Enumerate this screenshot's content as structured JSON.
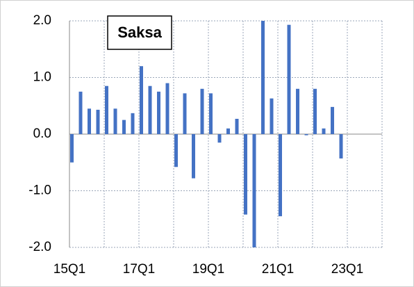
{
  "chart_data": {
    "type": "bar",
    "title": "Saksa",
    "categories": [
      "15Q1",
      null,
      null,
      null,
      null,
      null,
      null,
      null,
      "17Q1",
      null,
      null,
      null,
      null,
      null,
      null,
      null,
      "19Q1",
      null,
      null,
      null,
      null,
      null,
      null,
      null,
      "21Q1",
      null,
      null,
      null,
      null,
      null,
      null,
      null,
      "23Q1",
      null,
      null,
      null
    ],
    "values": [
      -0.5,
      0.75,
      0.45,
      0.43,
      0.85,
      0.45,
      0.25,
      0.37,
      1.2,
      0.85,
      0.75,
      0.9,
      -0.58,
      0.72,
      -0.78,
      0.8,
      0.72,
      -0.15,
      0.1,
      0.27,
      -1.42,
      -2.0,
      2.0,
      0.63,
      -1.45,
      1.93,
      0.8,
      -0.02,
      0.8,
      0.1,
      0.48,
      -0.43,
      null,
      null,
      null,
      null
    ],
    "color": "#4472c4",
    "ylim": [
      -2.0,
      2.0
    ],
    "yticks": [
      {
        "value": 2.0,
        "label": "2.0"
      },
      {
        "value": 1.0,
        "label": "1.0"
      },
      {
        "value": 0.0,
        "label": "0.0"
      },
      {
        "value": -1.0,
        "label": "-1.0"
      },
      {
        "value": -2.0,
        "label": "-2.0"
      }
    ],
    "grid": true
  }
}
